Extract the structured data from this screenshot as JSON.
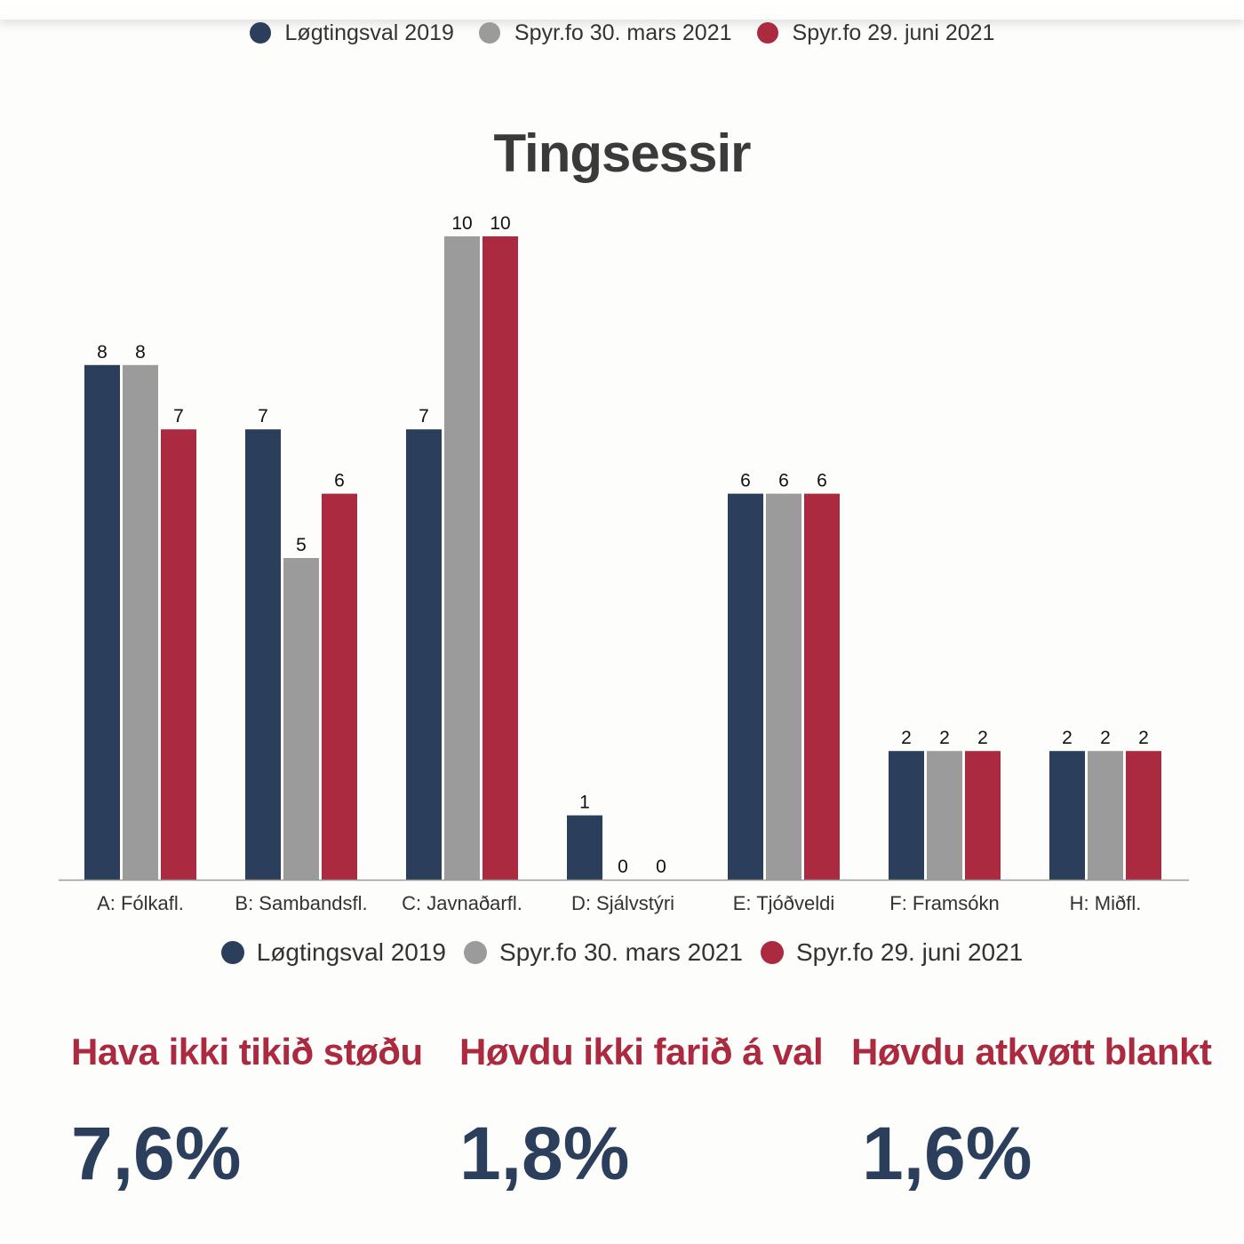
{
  "legend_top": [
    {
      "name": "Løgtingsval 2019",
      "color": "#2b3e5c"
    },
    {
      "name": "Spyr.fo 30. mars 2021",
      "color": "#9b9b9b"
    },
    {
      "name": "Spyr.fo 29. juni 2021",
      "color": "#ab2a40"
    }
  ],
  "chart_data": {
    "type": "bar",
    "title": "Tingsessir",
    "categories": [
      "A: Fólkafl.",
      "B: Sambandsfl.",
      "C: Javnaðarfl.",
      "D: Sjálvstýri",
      "E: Tjóðveldi",
      "F: Framsókn",
      "H: Miðfl."
    ],
    "series": [
      {
        "name": "Løgtingsval 2019",
        "color": "#2b3e5c",
        "values": [
          8,
          7,
          7,
          1,
          6,
          2,
          2
        ]
      },
      {
        "name": "Spyr.fo 30. mars 2021",
        "color": "#9b9b9b",
        "values": [
          8,
          5,
          10,
          0,
          6,
          2,
          2
        ]
      },
      {
        "name": "Spyr.fo 29. juni 2021",
        "color": "#ab2a40",
        "values": [
          7,
          6,
          10,
          0,
          6,
          2,
          2
        ]
      }
    ],
    "ylim": [
      0,
      10
    ],
    "grid": false,
    "legend": "bottom"
  },
  "stats": [
    {
      "label": "Hava ikki tikið støðu",
      "value": "7,6%"
    },
    {
      "label": "Høvdu ikki farið á val",
      "value": "1,8%"
    },
    {
      "label": "Høvdu atkvøtt blankt",
      "value": "1,6%"
    }
  ]
}
